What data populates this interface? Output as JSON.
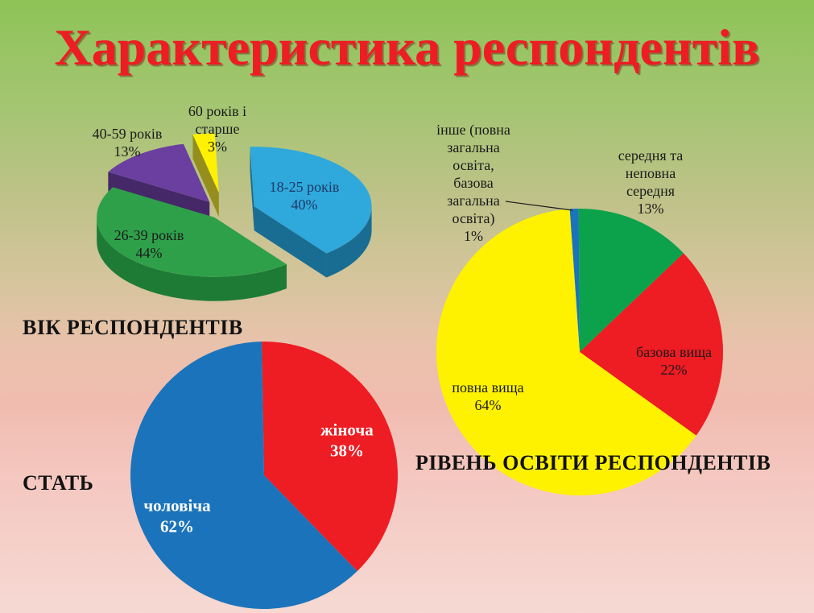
{
  "slide": {
    "title": "Характеристика респондентів",
    "title_color": "#ee1c23",
    "background": {
      "top": "#8ec457",
      "middle": "#d9c9a2",
      "bottom": "#f6d9d3"
    }
  },
  "chart_data": [
    {
      "type": "pie",
      "variant": "3d-exploded",
      "title": "ВІК РЕСПОНДЕНТІВ",
      "categories": [
        "18-25 років",
        "26-39 років",
        "40-59 років",
        "60 років і старше"
      ],
      "values": [
        40,
        44,
        13,
        3
      ],
      "unit": "%",
      "colors": [
        "#2fa8dc",
        "#2fa04a",
        "#6b3f9f",
        "#fff103"
      ],
      "side_colors": [
        "#1a6d92",
        "#1e7b35",
        "#452868",
        "#958e1e"
      ],
      "labels": [
        {
          "lines": [
            "18-25 років",
            "40%"
          ],
          "color": "#1d3a66"
        },
        {
          "lines": [
            "26-39 років",
            "44%"
          ],
          "color": "#1a1a1a"
        },
        {
          "lines": [
            "40-59 років",
            "13%"
          ],
          "color": "#1a1a1a"
        },
        {
          "lines": [
            "60 років і",
            "старше",
            "3%"
          ],
          "color": "#1a1a1a"
        }
      ]
    },
    {
      "type": "pie",
      "variant": "flat",
      "title": "СТАТЬ",
      "categories": [
        "жіноча",
        "чоловіча"
      ],
      "values": [
        38,
        62
      ],
      "unit": "%",
      "colors": [
        "#ee1c23",
        "#1b74bb"
      ],
      "labels": [
        {
          "lines": [
            "жіноча",
            "38%"
          ],
          "color": "#ffffff",
          "bold": true
        },
        {
          "lines": [
            "чоловіча",
            "62%"
          ],
          "color": "#ffffff",
          "bold": true
        }
      ]
    },
    {
      "type": "pie",
      "variant": "flat",
      "title": "РІВЕНЬ ОСВІТИ РЕСПОНДЕНТІВ",
      "categories": [
        "інше (повна загальна освіта, базова загальна освіта)",
        "середня та неповна середня",
        "базова вища",
        "повна вища"
      ],
      "values": [
        1,
        13,
        22,
        64
      ],
      "unit": "%",
      "colors": [
        "#1b74bb",
        "#0ca24b",
        "#ee1c23",
        "#fff200"
      ],
      "labels": [
        {
          "lines": [
            "інше (повна",
            "загальна",
            "освіта,",
            "базова",
            "загальна",
            "освіта)",
            "1%"
          ],
          "color": "#1a1a1a"
        },
        {
          "lines": [
            "середня та",
            "неповна",
            "середня",
            "13%"
          ],
          "color": "#1a1a1a"
        },
        {
          "lines": [
            "базова вища",
            "22%"
          ],
          "color": "#1a1a1a"
        },
        {
          "lines": [
            "повна вища",
            "64%"
          ],
          "color": "#1a1a1a"
        }
      ]
    }
  ]
}
